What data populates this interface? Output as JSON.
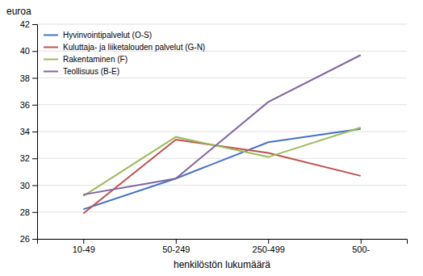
{
  "chart_data": {
    "type": "line",
    "categories": [
      "10-49",
      "50-249",
      "250-499",
      "500-"
    ],
    "series": [
      {
        "name": "Hyvinvointipalvelut (O-S)",
        "color": "#4472c4",
        "values": [
          28.2,
          30.5,
          33.2,
          34.2
        ]
      },
      {
        "name": "Kuluttaja- ja liiketalouden palvelut (G-N)",
        "color": "#c0504d",
        "values": [
          27.9,
          33.4,
          32.4,
          30.7
        ]
      },
      {
        "name": "Rakentaminen (F)",
        "color": "#9bbb59",
        "values": [
          29.2,
          33.6,
          32.1,
          34.3
        ]
      },
      {
        "name": "Teollisuus (B-E)",
        "color": "#8064a2",
        "values": [
          29.3,
          30.5,
          36.2,
          39.7
        ]
      }
    ],
    "y_label": "euroa",
    "x_label": "henkilöstön lukumäärä",
    "ylim": [
      26,
      42
    ],
    "yticks": [
      26,
      28,
      30,
      32,
      34,
      36,
      38,
      40,
      42
    ],
    "grid": true,
    "legend": "top-left"
  }
}
